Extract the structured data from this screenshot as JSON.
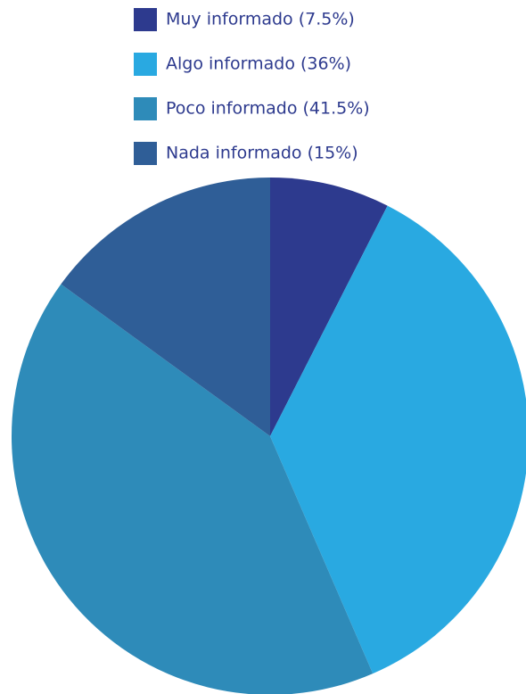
{
  "chart_data": {
    "type": "pie",
    "categories": [
      "Muy informado (7.5%)",
      "Algo informado (36%)",
      "Poco informado (41.5%)",
      "Nada informado (15%)"
    ],
    "values": [
      7.5,
      36,
      41.5,
      15
    ],
    "colors": [
      "#2d3a8e",
      "#29a9e1",
      "#2e8bb9",
      "#2f5e97"
    ]
  }
}
